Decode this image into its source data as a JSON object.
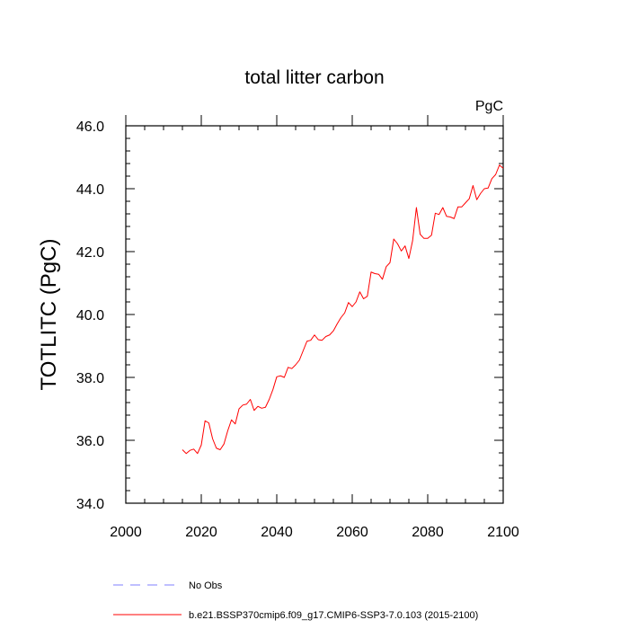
{
  "chart_data": {
    "type": "line",
    "title": "total litter carbon",
    "units_label": "PgC",
    "xlabel": "",
    "ylabel": "TOTLITC  (PgC)",
    "xlim": [
      2000,
      2100
    ],
    "ylim": [
      34.0,
      46.0
    ],
    "x_ticks": [
      2000,
      2020,
      2040,
      2060,
      2080,
      2100
    ],
    "x_tick_labels": [
      "2000",
      "2020",
      "2040",
      "2060",
      "2080",
      "2100"
    ],
    "y_ticks": [
      34,
      36,
      38,
      40,
      42,
      44,
      46
    ],
    "y_tick_labels": [
      "34.0",
      "36.0",
      "38.0",
      "40.0",
      "42.0",
      "44.0",
      "46.0"
    ],
    "grid": false,
    "legend": [
      {
        "label": "No Obs",
        "style": "dashed",
        "color": "#7f7fff"
      },
      {
        "label": "b.e21.BSSP370cmip6.f09_g17.CMIP6-SSP3-7.0.103 (2015-2100)",
        "style": "solid",
        "color": "#ff0000"
      }
    ],
    "series": [
      {
        "name": "b.e21.BSSP370cmip6.f09_g17.CMIP6-SSP3-7.0.103 (2015-2100)",
        "color": "#ff0000",
        "x": [
          2015,
          2016,
          2017,
          2018,
          2019,
          2020,
          2021,
          2022,
          2023,
          2024,
          2025,
          2026,
          2027,
          2028,
          2029,
          2030,
          2031,
          2032,
          2033,
          2034,
          2035,
          2036,
          2037,
          2038,
          2039,
          2040,
          2041,
          2042,
          2043,
          2044,
          2045,
          2046,
          2047,
          2048,
          2049,
          2050,
          2051,
          2052,
          2053,
          2054,
          2055,
          2056,
          2057,
          2058,
          2059,
          2060,
          2061,
          2062,
          2063,
          2064,
          2065,
          2066,
          2067,
          2068,
          2069,
          2070,
          2071,
          2072,
          2073,
          2074,
          2075,
          2076,
          2077,
          2078,
          2079,
          2080,
          2081,
          2082,
          2083,
          2084,
          2085,
          2086,
          2087,
          2088,
          2089,
          2090,
          2091,
          2092,
          2093,
          2094,
          2095,
          2096,
          2097,
          2098,
          2099,
          2100
        ],
        "values": [
          35.7,
          35.58,
          35.68,
          35.72,
          35.58,
          35.85,
          36.62,
          36.55,
          36.05,
          35.75,
          35.7,
          35.88,
          36.3,
          36.65,
          36.52,
          37.0,
          37.12,
          37.15,
          37.3,
          36.95,
          37.08,
          37.02,
          37.05,
          37.3,
          37.62,
          38.02,
          38.05,
          38.0,
          38.32,
          38.28,
          38.4,
          38.55,
          38.85,
          39.15,
          39.18,
          39.35,
          39.2,
          39.18,
          39.3,
          39.35,
          39.48,
          39.7,
          39.9,
          40.05,
          40.38,
          40.25,
          40.4,
          40.72,
          40.5,
          40.58,
          41.35,
          41.3,
          41.28,
          41.12,
          41.52,
          41.65,
          42.4,
          42.25,
          42.02,
          42.18,
          41.78,
          42.35,
          43.4,
          42.55,
          42.42,
          42.42,
          42.52,
          43.22,
          43.18,
          43.4,
          43.12,
          43.1,
          43.05,
          43.42,
          43.42,
          43.55,
          43.68,
          44.1,
          43.65,
          43.85,
          44.0,
          44.02,
          44.32,
          44.45,
          44.75,
          44.65
        ]
      }
    ]
  }
}
